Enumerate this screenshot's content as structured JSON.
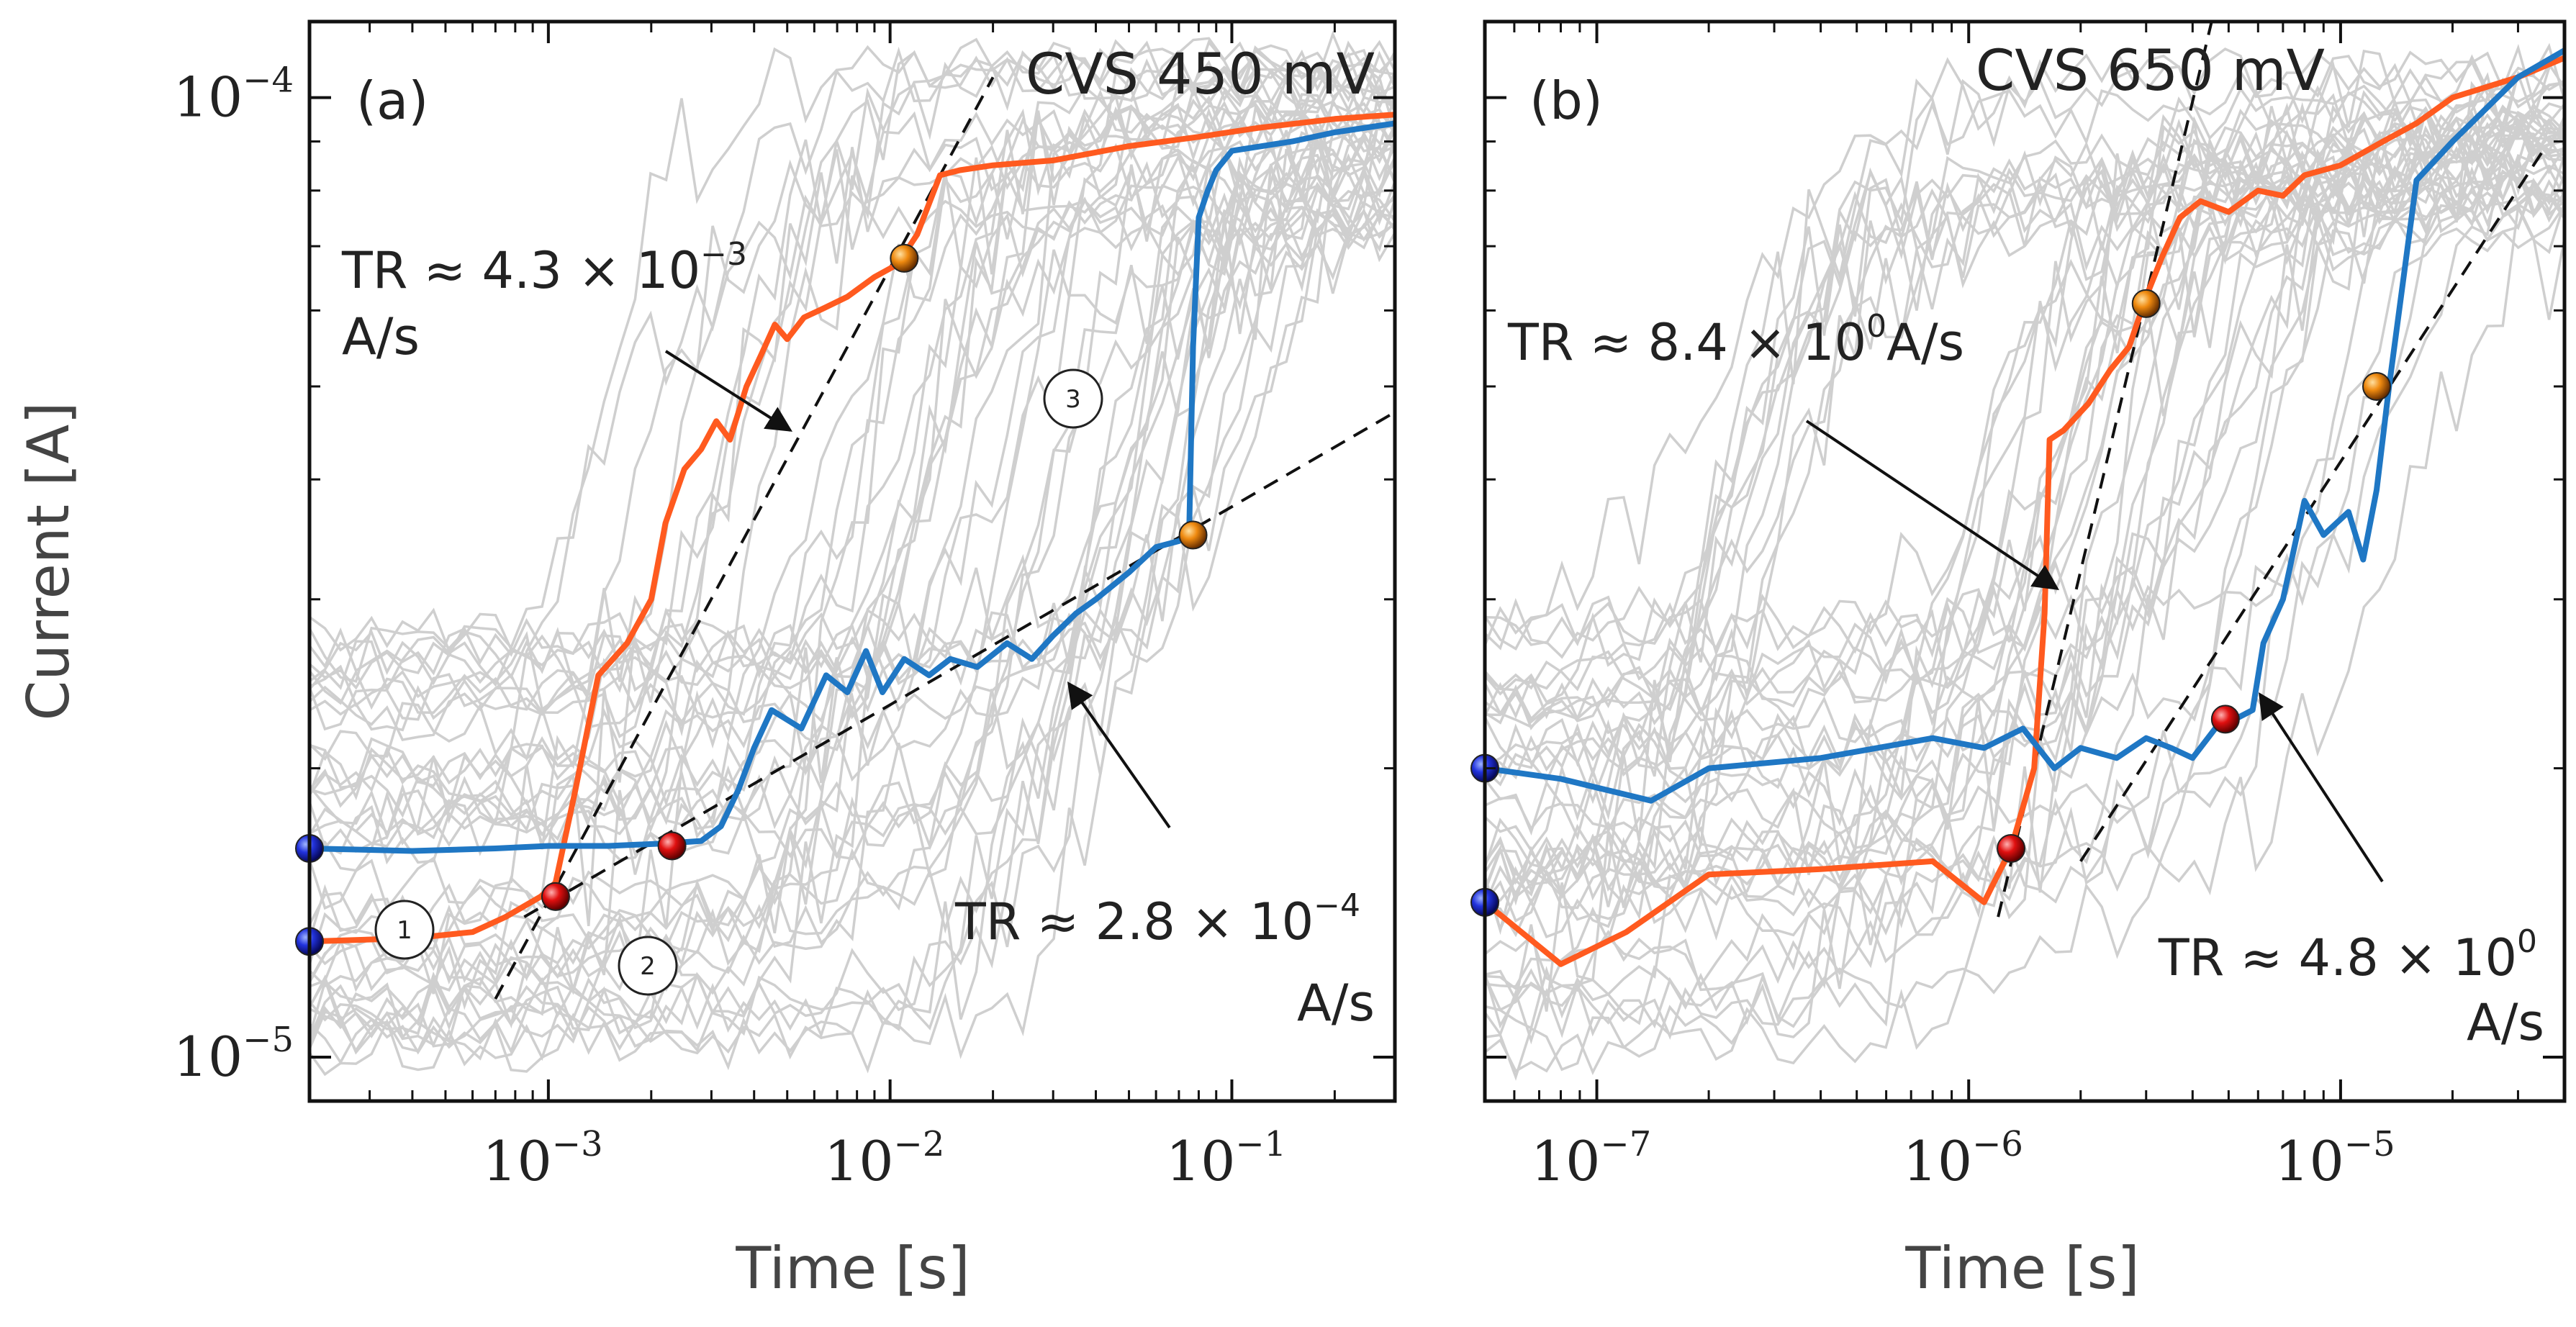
{
  "chart_data": [
    {
      "type": "line",
      "panel_label": "(a)",
      "title": "CVS 450 mV",
      "xlabel": "Time [s]",
      "ylabel": "Current [A]",
      "xscale": "log",
      "yscale": "log",
      "xlim": [
        0.0002,
        0.3
      ],
      "ylim": [
        9e-06,
        0.00012
      ],
      "x_ticks": [
        {
          "base": "10",
          "exp": "−3",
          "value": 0.001
        },
        {
          "base": "10",
          "exp": "−2",
          "value": 0.01
        },
        {
          "base": "10",
          "exp": "−1",
          "value": 0.1
        }
      ],
      "y_ticks": [
        {
          "base": "10",
          "exp": "−5",
          "value": 1e-05
        },
        {
          "base": "10",
          "exp": "−4",
          "value": 0.0001
        }
      ],
      "series": [
        {
          "name": "orange",
          "color": "#ff5a1f",
          "x": [
            0.0002,
            0.0004,
            0.0006,
            0.00075,
            0.00095,
            0.00105,
            0.0012,
            0.0014,
            0.0017,
            0.002,
            0.0022,
            0.0025,
            0.0028,
            0.0031,
            0.0034,
            0.0038,
            0.0042,
            0.0046,
            0.005,
            0.0056,
            0.0062,
            0.0075,
            0.009,
            0.0105,
            0.012,
            0.014,
            0.016,
            0.02,
            0.03,
            0.05,
            0.08,
            0.12,
            0.2,
            0.3
          ],
          "y": [
            1.32e-05,
            1.33e-05,
            1.35e-05,
            1.4e-05,
            1.47e-05,
            1.52e-05,
            1.9e-05,
            2.5e-05,
            2.7e-05,
            3e-05,
            3.6e-05,
            4.1e-05,
            4.3e-05,
            4.6e-05,
            4.4e-05,
            5e-05,
            5.4e-05,
            5.8e-05,
            5.6e-05,
            5.9e-05,
            6e-05,
            6.2e-05,
            6.5e-05,
            6.7e-05,
            7.2e-05,
            8.3e-05,
            8.4e-05,
            8.5e-05,
            8.6e-05,
            8.9e-05,
            9.1e-05,
            9.3e-05,
            9.5e-05,
            9.6e-05
          ]
        },
        {
          "name": "blue",
          "color": "#1f77c4",
          "x": [
            0.0002,
            0.0004,
            0.0007,
            0.001,
            0.0015,
            0.0022,
            0.0028,
            0.0032,
            0.0036,
            0.004,
            0.0045,
            0.0055,
            0.0065,
            0.0075,
            0.0085,
            0.0095,
            0.011,
            0.013,
            0.015,
            0.018,
            0.022,
            0.026,
            0.03,
            0.035,
            0.04,
            0.05,
            0.06,
            0.07,
            0.075,
            0.077,
            0.08,
            0.085,
            0.09,
            0.1,
            0.15,
            0.2,
            0.3
          ],
          "y": [
            1.65e-05,
            1.64e-05,
            1.65e-05,
            1.66e-05,
            1.66e-05,
            1.67e-05,
            1.68e-05,
            1.74e-05,
            1.9e-05,
            2.1e-05,
            2.3e-05,
            2.2e-05,
            2.5e-05,
            2.4e-05,
            2.65e-05,
            2.4e-05,
            2.6e-05,
            2.5e-05,
            2.6e-05,
            2.55e-05,
            2.7e-05,
            2.6e-05,
            2.75e-05,
            2.9e-05,
            3e-05,
            3.2e-05,
            3.4e-05,
            3.45e-05,
            3.5e-05,
            5.5e-05,
            7.5e-05,
            8e-05,
            8.4e-05,
            8.8e-05,
            9e-05,
            9.2e-05,
            9.4e-05
          ]
        }
      ],
      "markers": [
        {
          "color": "blue",
          "x": 0.0002,
          "y": 1.65e-05
        },
        {
          "color": "blue",
          "x": 0.0002,
          "y": 1.32e-05
        },
        {
          "color": "red",
          "x": 0.00105,
          "y": 1.47e-05
        },
        {
          "color": "red",
          "x": 0.0023,
          "y": 1.66e-05
        },
        {
          "color": "orange",
          "x": 0.011,
          "y": 6.8e-05
        },
        {
          "color": "orange",
          "x": 0.077,
          "y": 3.5e-05
        }
      ],
      "fit_lines": [
        {
          "x": [
            0.0007,
            0.02
          ],
          "y": [
            1.15e-05,
            0.000105
          ]
        },
        {
          "x": [
            0.00085,
            0.3
          ],
          "y": [
            1.4e-05,
            4.7e-05
          ]
        }
      ],
      "annotations": [
        {
          "text": "TR ≈ 4.3 × 10",
          "exp": "−3",
          "line2": "A/s"
        },
        {
          "text": "TR ≈ 2.8 × 10",
          "exp": "−4",
          "line2": "A/s"
        }
      ],
      "regions": [
        "1",
        "2",
        "3"
      ]
    },
    {
      "type": "line",
      "panel_label": "(b)",
      "title": "CVS 650 mV",
      "xlabel": "Time [s]",
      "ylabel": "",
      "xscale": "log",
      "yscale": "log",
      "xlim": [
        5e-08,
        4e-05
      ],
      "ylim": [
        9e-06,
        0.00012
      ],
      "x_ticks": [
        {
          "base": "10",
          "exp": "−7",
          "value": 1e-07
        },
        {
          "base": "10",
          "exp": "−6",
          "value": 1e-06
        },
        {
          "base": "10",
          "exp": "−5",
          "value": 1e-05
        }
      ],
      "series": [
        {
          "name": "orange",
          "color": "#ff5a1f",
          "x": [
            5e-08,
            8e-08,
            1.2e-07,
            2e-07,
            4e-07,
            8e-07,
            1.1e-06,
            1.3e-06,
            1.5e-06,
            1.6e-06,
            1.65e-06,
            1.8e-06,
            2.1e-06,
            2.4e-06,
            2.7e-06,
            3e-06,
            3.3e-06,
            3.7e-06,
            4.2e-06,
            5e-06,
            6e-06,
            7e-06,
            8e-06,
            1e-05,
            1.3e-05,
            1.6e-05,
            2e-05,
            3e-05,
            4e-05
          ],
          "y": [
            1.45e-05,
            1.25e-05,
            1.35e-05,
            1.55e-05,
            1.57e-05,
            1.6e-05,
            1.45e-05,
            1.65e-05,
            2e-05,
            2.9e-05,
            4.4e-05,
            4.5e-05,
            4.8e-05,
            5.2e-05,
            5.5e-05,
            6.2e-05,
            6.8e-05,
            7.5e-05,
            7.8e-05,
            7.6e-05,
            8e-05,
            7.9e-05,
            8.3e-05,
            8.5e-05,
            9e-05,
            9.4e-05,
            0.0001,
            0.000105,
            0.00011
          ]
        },
        {
          "name": "blue",
          "color": "#1f77c4",
          "x": [
            5e-08,
            8e-08,
            1.4e-07,
            2e-07,
            4e-07,
            8e-07,
            1.1e-06,
            1.4e-06,
            1.7e-06,
            2e-06,
            2.5e-06,
            3e-06,
            3.5e-06,
            4e-06,
            4.6e-06,
            5.2e-06,
            5.8e-06,
            6.2e-06,
            7e-06,
            8e-06,
            9e-06,
            1.05e-05,
            1.15e-05,
            1.25e-05,
            1.35e-05,
            1.6e-05,
            2e-05,
            3e-05,
            4e-05
          ],
          "y": [
            2e-05,
            1.95e-05,
            1.85e-05,
            2e-05,
            2.05e-05,
            2.15e-05,
            2.1e-05,
            2.2e-05,
            2e-05,
            2.1e-05,
            2.05e-05,
            2.15e-05,
            2.1e-05,
            2.05e-05,
            2.2e-05,
            2.25e-05,
            2.3e-05,
            2.7e-05,
            3e-05,
            3.8e-05,
            3.5e-05,
            3.7e-05,
            3.3e-05,
            3.9e-05,
            5e-05,
            8.2e-05,
            9e-05,
            0.000105,
            0.000112
          ]
        }
      ],
      "markers": [
        {
          "color": "blue",
          "x": 5e-08,
          "y": 2e-05
        },
        {
          "color": "blue",
          "x": 5e-08,
          "y": 1.45e-05
        },
        {
          "color": "red",
          "x": 1.3e-06,
          "y": 1.65e-05
        },
        {
          "color": "red",
          "x": 4.9e-06,
          "y": 2.25e-05
        },
        {
          "color": "orange",
          "x": 3e-06,
          "y": 6.1e-05
        },
        {
          "color": "orange",
          "x": 1.25e-05,
          "y": 5e-05
        }
      ],
      "fit_lines": [
        {
          "x": [
            1.2e-06,
            4.5e-06
          ],
          "y": [
            1.4e-05,
            0.00012
          ]
        },
        {
          "x": [
            2e-06,
            3.5e-05
          ],
          "y": [
            1.6e-05,
            8.8e-05
          ]
        }
      ],
      "annotations": [
        {
          "text": "TR ≈ 8.4 × 10",
          "exp": "0",
          "line2": "A/s"
        },
        {
          "text": "TR ≈ 4.8 × 10",
          "exp": "0",
          "line2": "A/s"
        }
      ],
      "regions": []
    }
  ]
}
